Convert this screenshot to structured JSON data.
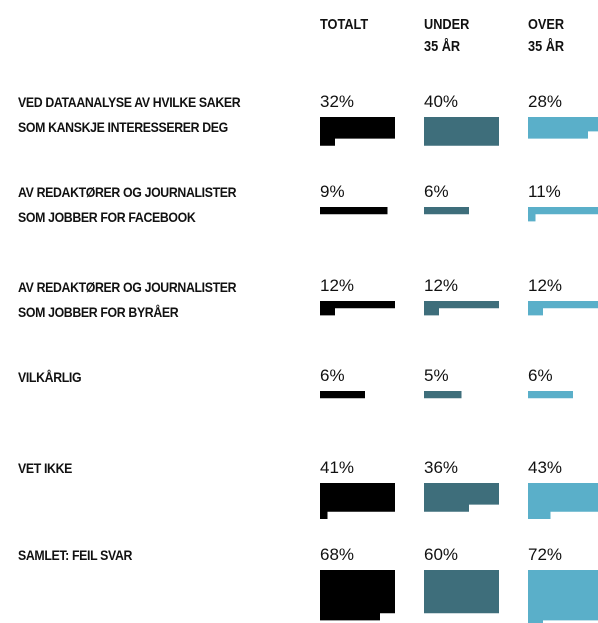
{
  "chart_data": {
    "type": "unit-area",
    "columns": [
      [
        "TOTALT"
      ],
      [
        "UNDER",
        "35 ÅR"
      ],
      [
        "OVER",
        "35 ÅR"
      ]
    ],
    "categories": [
      [
        "VED DATAANALYSE AV HVILKE SAKER",
        "SOM KANSKJE INTERESSERER DEG"
      ],
      [
        "AV REDAKTØRER OG JOURNALISTER",
        "SOM JOBBER FOR FACEBOOK"
      ],
      [
        "AV REDAKTØRER OG JOURNALISTER",
        "SOM JOBBER FOR BYRÅER"
      ],
      [
        "VILKÅRLIG"
      ],
      [
        "VET IKKE"
      ],
      [
        "SAMLET: FEIL SVAR"
      ]
    ],
    "series": [
      {
        "name": "TOTALT",
        "color": "#000000",
        "values": [
          32,
          9,
          12,
          6,
          41,
          68
        ],
        "value_labels": [
          "32%",
          "9%",
          "12%",
          "6%",
          "41%",
          "68%"
        ]
      },
      {
        "name": "UNDER 35 ÅR",
        "color": "#3e6e7b",
        "values": [
          40,
          6,
          12,
          5,
          36,
          60
        ],
        "value_labels": [
          "40%",
          "6%",
          "12%",
          "5%",
          "36%",
          "60%"
        ]
      },
      {
        "name": "OVER 35 ÅR",
        "color": "#5aafc9",
        "values": [
          28,
          11,
          12,
          6,
          43,
          72
        ],
        "value_labels": [
          "28%",
          "11%",
          "12%",
          "6%",
          "43%",
          "72%"
        ]
      }
    ]
  }
}
